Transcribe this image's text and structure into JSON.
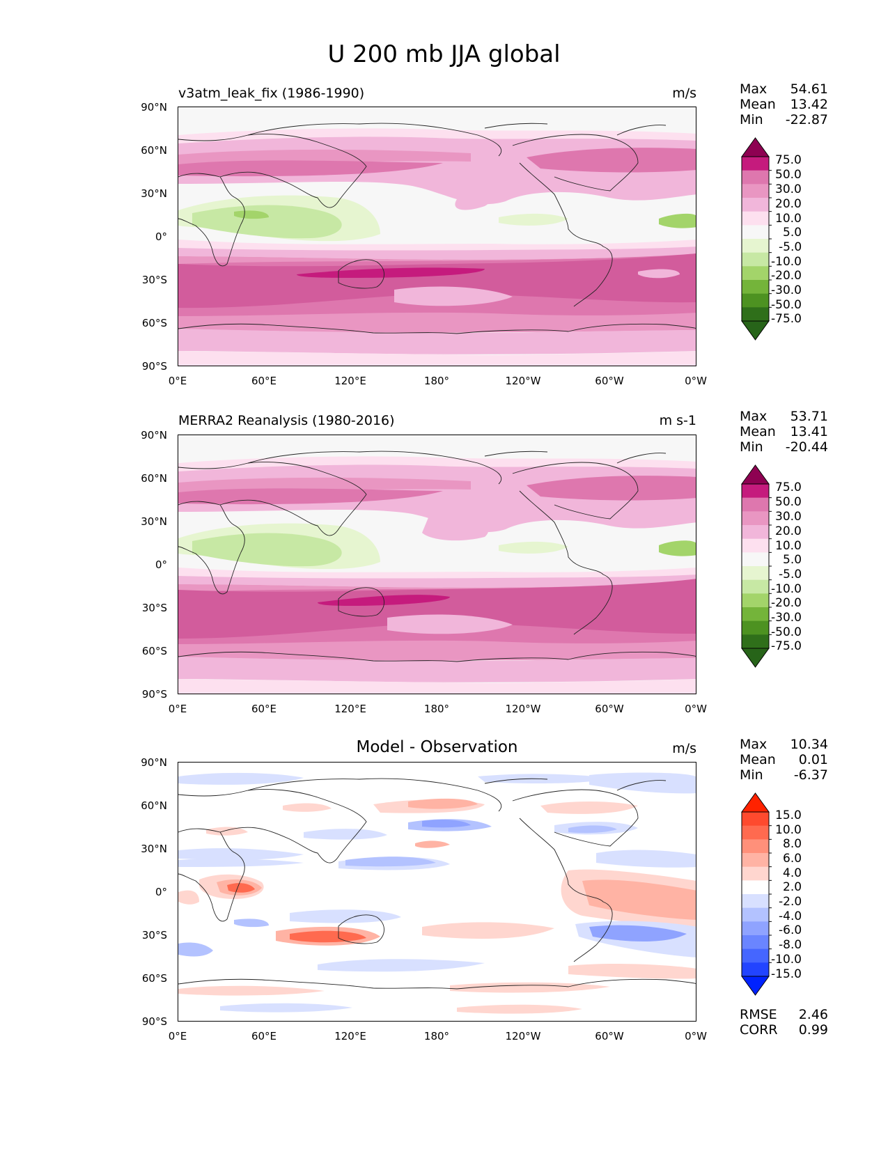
{
  "figure": {
    "title": "U 200 mb JJA global"
  },
  "axes": {
    "lat_labels": [
      "90°N",
      "60°N",
      "30°N",
      "0°",
      "30°S",
      "60°S",
      "90°S"
    ],
    "lon_labels": [
      "0°E",
      "60°E",
      "120°E",
      "180°",
      "120°W",
      "60°W",
      "0°W"
    ]
  },
  "panels": [
    {
      "left_title": "v3atm_leak_fix (1986-1990)",
      "center_title": "",
      "units": "m/s",
      "stats": [
        {
          "label": "Max",
          "value": "54.61"
        },
        {
          "label": "Mean",
          "value": "13.42"
        },
        {
          "label": "Min",
          "value": "-22.87"
        }
      ]
    },
    {
      "left_title": "MERRA2 Reanalysis (1980-2016)",
      "center_title": "",
      "units": "m s-1",
      "stats": [
        {
          "label": "Max",
          "value": "53.71"
        },
        {
          "label": "Mean",
          "value": "13.41"
        },
        {
          "label": "Min",
          "value": "-20.44"
        }
      ]
    },
    {
      "left_title": "",
      "center_title": "Model - Observation",
      "units": "m/s",
      "stats": [
        {
          "label": "Max",
          "value": "10.34"
        },
        {
          "label": "Mean",
          "value": "0.01"
        },
        {
          "label": "Min",
          "value": "-6.37"
        }
      ],
      "metrics": [
        {
          "label": "RMSE",
          "value": "2.46"
        },
        {
          "label": "CORR",
          "value": "0.99"
        }
      ]
    }
  ],
  "colorbars": {
    "field": {
      "labels": [
        "75.0",
        "50.0",
        "30.0",
        "20.0",
        "10.0",
        "5.0",
        "-5.0",
        "-10.0",
        "-20.0",
        "-30.0",
        "-50.0",
        "-75.0"
      ],
      "colors": [
        "#8e0152",
        "#c51b7d",
        "#de77ae",
        "#e996c2",
        "#f1b6da",
        "#fde0ef",
        "#f7f7f7",
        "#e6f5d0",
        "#c7e8a4",
        "#a3d46a",
        "#74b43a",
        "#4d9221",
        "#2f6f1a",
        "#276419"
      ]
    },
    "diff": {
      "labels": [
        "15.0",
        "10.0",
        "8.0",
        "6.0",
        "4.0",
        "2.0",
        "-2.0",
        "-4.0",
        "-6.0",
        "-8.0",
        "-10.0",
        "-15.0"
      ],
      "colors": [
        "#ff2200",
        "#fe4a2e",
        "#ff6a4f",
        "#ff907a",
        "#ffb3a4",
        "#ffd6cf",
        "#ffffff",
        "#d8e0ff",
        "#b3c2ff",
        "#8fa3ff",
        "#6a85ff",
        "#4566ff",
        "#2244ff",
        "#0022ff"
      ]
    }
  },
  "chart_data": {
    "type": "heatmap",
    "title": "U 200 mb JJA global",
    "variable": "zonal wind at 200 mb, JJA",
    "x_range_deg": [
      0,
      360
    ],
    "y_range_deg": [
      -90,
      90
    ],
    "maps": [
      {
        "name": "v3atm_leak_fix (1986-1990)",
        "units": "m/s",
        "max": 54.61,
        "mean": 13.42,
        "min": -22.87
      },
      {
        "name": "MERRA2 Reanalysis (1980-2016)",
        "units": "m s-1",
        "max": 53.71,
        "mean": 13.41,
        "min": -20.44
      },
      {
        "name": "Model - Observation",
        "units": "m/s",
        "max": 10.34,
        "mean": 0.01,
        "min": -6.37,
        "rmse": 2.46,
        "corr": 0.99
      }
    ],
    "field_levels": [
      -75,
      -50,
      -30,
      -20,
      -10,
      -5,
      5,
      10,
      20,
      30,
      50,
      75
    ],
    "diff_levels": [
      -15,
      -10,
      -8,
      -6,
      -4,
      -2,
      2,
      4,
      6,
      8,
      10,
      15
    ]
  }
}
